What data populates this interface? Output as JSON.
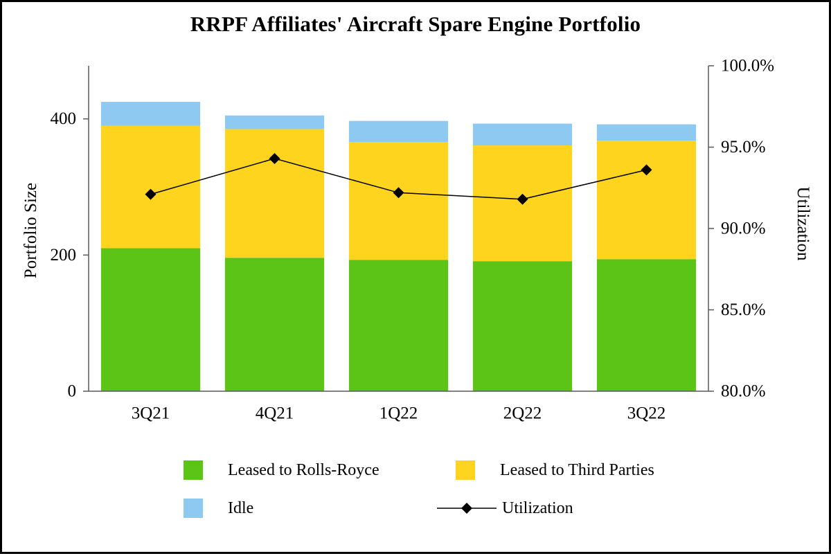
{
  "chart_data": {
    "type": "bar",
    "variant": "stacked-bars-with-line-overlay",
    "title": "RRPF Affiliates' Aircraft Spare Engine Portfolio",
    "categories": [
      "3Q21",
      "4Q21",
      "1Q22",
      "2Q22",
      "3Q22"
    ],
    "series": [
      {
        "name": "Leased to Rolls-Royce",
        "color": "#5cc417",
        "values": [
          210,
          196,
          193,
          191,
          194
        ]
      },
      {
        "name": "Leased to Third Parties",
        "color": "#ffd41f",
        "values": [
          180,
          189,
          173,
          170,
          174
        ]
      },
      {
        "name": "Idle",
        "color": "#8dc9f1",
        "values": [
          35,
          20,
          31,
          32,
          24
        ]
      }
    ],
    "bar_totals": [
      425,
      405,
      397,
      393,
      392
    ],
    "line_series": {
      "name": "Utilization",
      "color": "#000000",
      "axis": "right",
      "values_percent": [
        92.1,
        94.3,
        92.2,
        91.8,
        93.6
      ]
    },
    "left_axis": {
      "label": "Portfolio Size",
      "min": 0,
      "max": 478,
      "ticks": [
        0,
        200,
        400
      ]
    },
    "right_axis": {
      "label": "Utilization",
      "min": 80,
      "max": 100,
      "ticks": [
        {
          "value": 80,
          "label": "80.0%"
        },
        {
          "value": 85,
          "label": "85.0%"
        },
        {
          "value": 90,
          "label": "90.0%"
        },
        {
          "value": 95,
          "label": "95.0%"
        },
        {
          "value": 100,
          "label": "100.0%"
        }
      ]
    },
    "grid": "off",
    "legend_position": "bottom"
  }
}
